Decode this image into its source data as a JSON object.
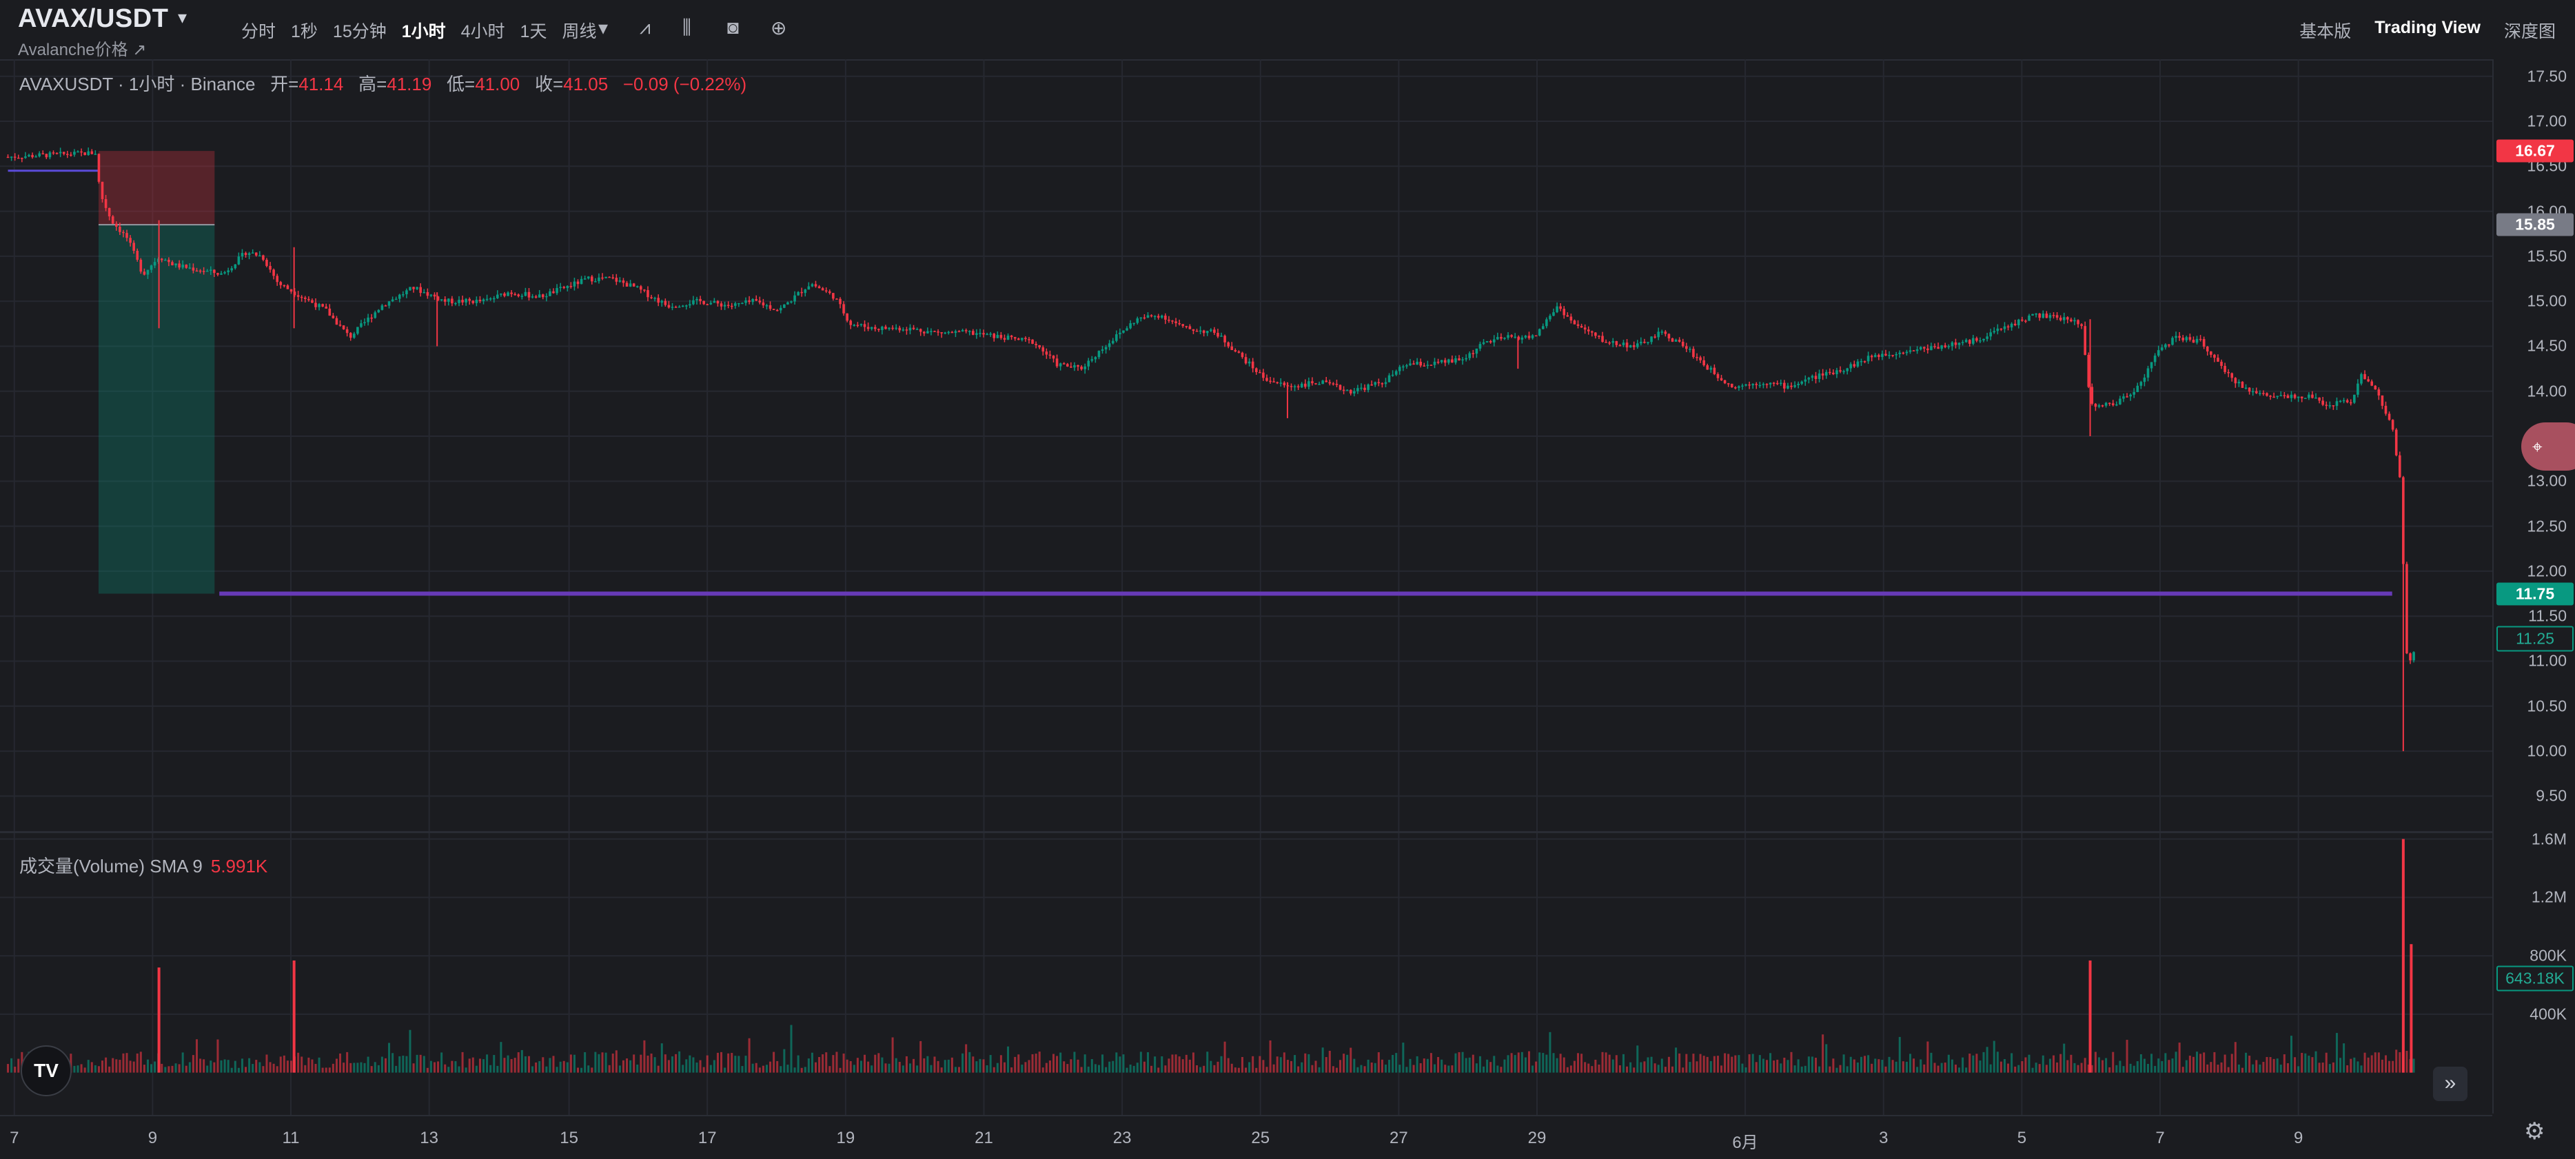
{
  "header": {
    "pair": "AVAX/USDT",
    "subtitle": "Avalanche价格 ↗",
    "intervals": [
      "分时",
      "1秒",
      "15分钟",
      "1小时",
      "4小时",
      "1天",
      "周线"
    ],
    "active_interval": "1小时",
    "right_tabs": [
      "基本版",
      "Trading View",
      "深度图"
    ],
    "active_tab": "Trading View"
  },
  "legend": {
    "symbol": "AVAXUSDT · 1小时 · Binance",
    "open_label": "开=",
    "open": "41.14",
    "high_label": "高=",
    "high": "41.19",
    "low_label": "低=",
    "low": "41.00",
    "close_label": "收=",
    "close": "41.05",
    "change": "−0.09 (−0.22%)"
  },
  "volume_legend": {
    "label": "成交量(Volume)  SMA 9",
    "value": "5.991K"
  },
  "price_axis": {
    "labels": [
      "17.50",
      "17.00",
      "16.50",
      "16.00",
      "15.50",
      "15.00",
      "14.50",
      "14.00",
      "13.50",
      "13.00",
      "12.50",
      "12.00",
      "11.50",
      "11.00",
      "10.50",
      "10.00",
      "9.50"
    ],
    "tags": [
      {
        "value": "16.67",
        "color": "#f23645"
      },
      {
        "value": "15.85",
        "color": "#787b86"
      },
      {
        "value": "11.75",
        "color": "#089981"
      },
      {
        "value": "11.25",
        "color": "#1b1c20",
        "border": "#089981",
        "text": "#22ab94"
      }
    ]
  },
  "volume_axis": {
    "labels": [
      "1.6M",
      "1.2M",
      "800K",
      "400K"
    ],
    "tag": "643.18K"
  },
  "time_axis": {
    "labels": [
      "7",
      "9",
      "11",
      "13",
      "15",
      "17",
      "19",
      "21",
      "23",
      "25",
      "27",
      "29",
      "6月",
      "3",
      "5",
      "7",
      "9"
    ]
  },
  "chart_data": {
    "type": "candlestick",
    "price_range": [
      9.5,
      17.5
    ],
    "volume_range": [
      0,
      1600000
    ],
    "horizontal_line": 11.75,
    "position_tool": {
      "entry": 15.85,
      "stop": 16.67,
      "target": 11.75
    },
    "path_points": [
      [
        0,
        16.6
      ],
      [
        60,
        16.65
      ],
      [
        63,
        16.2
      ],
      [
        70,
        15.9
      ],
      [
        80,
        15.7
      ],
      [
        90,
        15.3
      ],
      [
        100,
        15.5
      ],
      [
        110,
        15.4
      ],
      [
        125,
        15.35
      ],
      [
        140,
        15.3
      ],
      [
        155,
        15.55
      ],
      [
        165,
        15.5
      ],
      [
        175,
        15.2
      ],
      [
        190,
        15.05
      ],
      [
        205,
        14.9
      ],
      [
        220,
        14.6
      ],
      [
        240,
        14.95
      ],
      [
        260,
        15.15
      ],
      [
        280,
        15.0
      ],
      [
        305,
        15.0
      ],
      [
        320,
        15.1
      ],
      [
        340,
        15.05
      ],
      [
        355,
        15.15
      ],
      [
        370,
        15.25
      ],
      [
        385,
        15.25
      ],
      [
        400,
        15.15
      ],
      [
        420,
        14.95
      ],
      [
        440,
        15.0
      ],
      [
        460,
        14.95
      ],
      [
        475,
        15.0
      ],
      [
        490,
        14.9
      ],
      [
        510,
        15.2
      ],
      [
        525,
        15.05
      ],
      [
        535,
        14.75
      ],
      [
        550,
        14.7
      ],
      [
        570,
        14.7
      ],
      [
        590,
        14.65
      ],
      [
        610,
        14.65
      ],
      [
        630,
        14.6
      ],
      [
        650,
        14.55
      ],
      [
        665,
        14.3
      ],
      [
        680,
        14.25
      ],
      [
        695,
        14.5
      ],
      [
        715,
        14.8
      ],
      [
        730,
        14.85
      ],
      [
        745,
        14.7
      ],
      [
        765,
        14.65
      ],
      [
        780,
        14.4
      ],
      [
        795,
        14.15
      ],
      [
        810,
        14.05
      ],
      [
        830,
        14.1
      ],
      [
        850,
        14.0
      ],
      [
        870,
        14.1
      ],
      [
        885,
        14.3
      ],
      [
        900,
        14.3
      ],
      [
        920,
        14.35
      ],
      [
        935,
        14.55
      ],
      [
        950,
        14.6
      ],
      [
        965,
        14.6
      ],
      [
        980,
        14.95
      ],
      [
        990,
        14.75
      ],
      [
        1010,
        14.55
      ],
      [
        1030,
        14.5
      ],
      [
        1045,
        14.65
      ],
      [
        1060,
        14.5
      ],
      [
        1075,
        14.25
      ],
      [
        1090,
        14.05
      ],
      [
        1110,
        14.1
      ],
      [
        1125,
        14.05
      ],
      [
        1140,
        14.15
      ],
      [
        1160,
        14.25
      ],
      [
        1180,
        14.4
      ],
      [
        1200,
        14.45
      ],
      [
        1220,
        14.5
      ],
      [
        1240,
        14.55
      ],
      [
        1260,
        14.7
      ],
      [
        1280,
        14.85
      ],
      [
        1300,
        14.8
      ],
      [
        1310,
        14.75
      ],
      [
        1315,
        13.85
      ],
      [
        1330,
        13.85
      ],
      [
        1345,
        14.05
      ],
      [
        1360,
        14.5
      ],
      [
        1370,
        14.6
      ],
      [
        1385,
        14.55
      ],
      [
        1400,
        14.2
      ],
      [
        1415,
        14.0
      ],
      [
        1430,
        13.95
      ],
      [
        1450,
        13.95
      ],
      [
        1465,
        13.85
      ],
      [
        1480,
        13.9
      ],
      [
        1485,
        14.2
      ],
      [
        1495,
        14.0
      ],
      [
        1505,
        13.6
      ],
      [
        1510,
        13.0
      ],
      [
        1514,
        11.1
      ],
      [
        1517,
        10.95
      ],
      [
        1520,
        11.25
      ]
    ],
    "volume_spikes": [
      [
        100,
        0.45
      ],
      [
        185,
        0.48
      ],
      [
        1315,
        0.48
      ],
      [
        1512,
        1.0
      ],
      [
        1517,
        0.55
      ]
    ]
  }
}
